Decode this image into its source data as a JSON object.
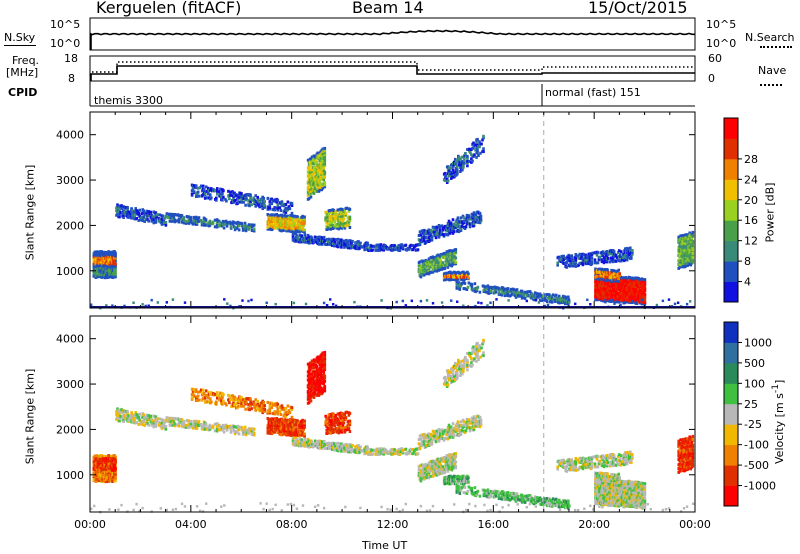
{
  "header": {
    "radar": "Kerguelen (fitACF)",
    "beam": "Beam 14",
    "date": "15/Oct/2015"
  },
  "top_panels": {
    "nsky_label": "N.Sky",
    "nsky_ticks": [
      "10^5",
      "10^0"
    ],
    "nsearch_label": "N.Search",
    "nsearch_ticks": [
      "10^5",
      "10^0"
    ],
    "freq_label_1": "Freq.",
    "freq_label_2": "[MHz]",
    "freq_ticks": [
      "18",
      "8"
    ],
    "nave_label": "Nave",
    "nave_ticks": [
      "60",
      "0"
    ],
    "cpid_label": "CPID",
    "cpid_segments": [
      {
        "name": "themis 3300",
        "start": "00:00"
      },
      {
        "name": "normal (fast) 151",
        "start": "18:00"
      }
    ]
  },
  "chart_data": [
    {
      "type": "heatmap",
      "title": "Power",
      "ylabel": "Slant Range [km]",
      "xlabel": "Time UT",
      "x_ticks": [
        "00:00",
        "04:00",
        "08:00",
        "12:00",
        "16:00",
        "20:00",
        "00:00"
      ],
      "y_ticks": [
        1000,
        2000,
        3000,
        4000
      ],
      "ylim": [
        180,
        4500
      ],
      "colorbar": {
        "label": "Power [dB]",
        "ticks": [
          4,
          8,
          12,
          16,
          20,
          24,
          28
        ],
        "colors": [
          "#1010e0",
          "#2050c0",
          "#3a8a7a",
          "#4aa04a",
          "#9ad020",
          "#f0c000",
          "#f08000",
          "#e03000",
          "#ff0000"
        ]
      }
    },
    {
      "type": "heatmap",
      "title": "Velocity",
      "ylabel": "Slant Range [km]",
      "xlabel": "Time UT",
      "x_ticks": [
        "00:00",
        "04:00",
        "08:00",
        "12:00",
        "16:00",
        "20:00",
        "00:00"
      ],
      "y_ticks": [
        1000,
        2000,
        3000,
        4000
      ],
      "ylim": [
        180,
        4500
      ],
      "colorbar": {
        "label": "Velocity [m s^-1]",
        "ticks": [
          "1000",
          "500",
          "100",
          "25",
          "-25",
          "-100",
          "-500",
          "-1000"
        ],
        "colors": [
          "#1030c0",
          "#3070a0",
          "#2a8a5a",
          "#40c040",
          "#b8b8b8",
          "#f0b800",
          "#f08000",
          "#e03000",
          "#ff0000"
        ]
      }
    }
  ]
}
